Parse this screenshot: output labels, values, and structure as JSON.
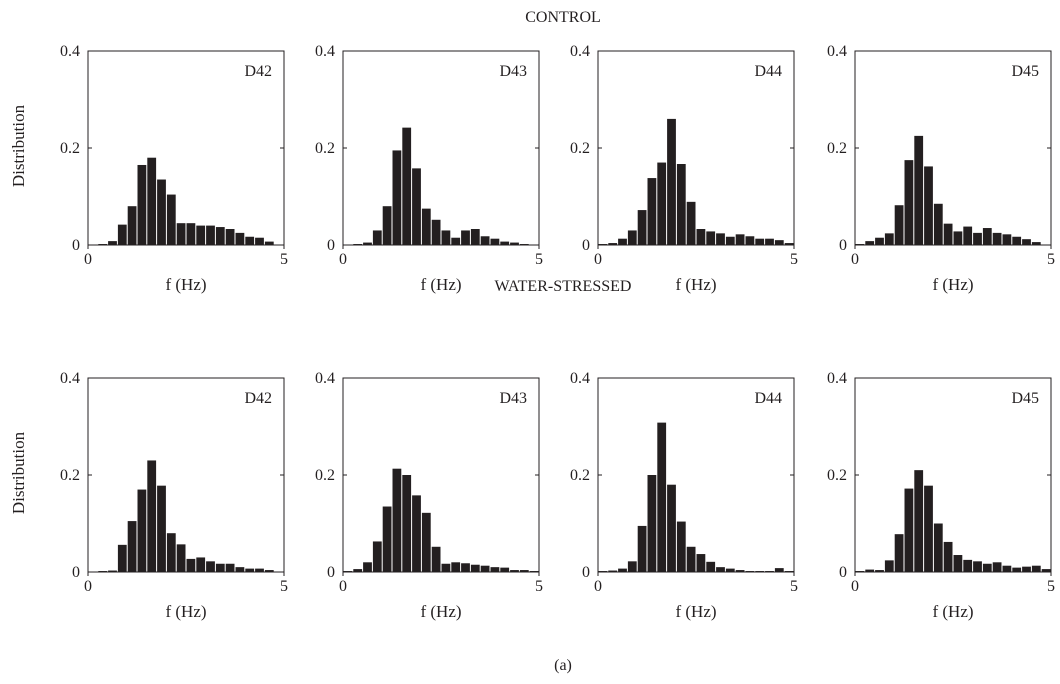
{
  "figure": {
    "caption": "(a)",
    "rows": [
      {
        "label": "CONTROL",
        "ylabel": "Distribution"
      },
      {
        "label": "WATER-STRESSED",
        "ylabel": "Distribution"
      }
    ],
    "xlabel": "f (Hz)",
    "bar_color": "#231f20"
  },
  "chart_data": [
    {
      "type": "bar",
      "row": "CONTROL",
      "label": "D42",
      "xlabel": "f (Hz)",
      "ylabel": "Distribution",
      "xlim": [
        0,
        5
      ],
      "ylim": [
        0,
        0.4
      ],
      "xticks": [
        0,
        5
      ],
      "yticks": [
        0,
        0.2,
        0.4
      ],
      "bin_width": 0.25,
      "bin_starts": [
        0.25,
        0.5,
        0.75,
        1.0,
        1.25,
        1.5,
        1.75,
        2.0,
        2.25,
        2.5,
        2.75,
        3.0,
        3.25,
        3.5,
        3.75,
        4.0,
        4.25,
        4.5
      ],
      "values": [
        0.002,
        0.008,
        0.042,
        0.08,
        0.165,
        0.18,
        0.135,
        0.104,
        0.045,
        0.045,
        0.04,
        0.04,
        0.037,
        0.033,
        0.025,
        0.017,
        0.015,
        0.007
      ]
    },
    {
      "type": "bar",
      "row": "CONTROL",
      "label": "D43",
      "xlabel": "f (Hz)",
      "ylabel": "Distribution",
      "xlim": [
        0,
        5
      ],
      "ylim": [
        0,
        0.4
      ],
      "xticks": [
        0,
        5
      ],
      "yticks": [
        0,
        0.2,
        0.4
      ],
      "bin_width": 0.25,
      "bin_starts": [
        0.25,
        0.5,
        0.75,
        1.0,
        1.25,
        1.5,
        1.75,
        2.0,
        2.25,
        2.5,
        2.75,
        3.0,
        3.25,
        3.5,
        3.75,
        4.0,
        4.25,
        4.5
      ],
      "values": [
        0.002,
        0.005,
        0.03,
        0.08,
        0.195,
        0.242,
        0.158,
        0.075,
        0.052,
        0.03,
        0.015,
        0.03,
        0.033,
        0.018,
        0.013,
        0.007,
        0.005,
        0.002
      ]
    },
    {
      "type": "bar",
      "row": "CONTROL",
      "label": "D44",
      "xlabel": "f (Hz)",
      "ylabel": "Distribution",
      "xlim": [
        0,
        5
      ],
      "ylim": [
        0,
        0.4
      ],
      "xticks": [
        0,
        5
      ],
      "yticks": [
        0,
        0.2,
        0.4
      ],
      "bin_width": 0.25,
      "bin_starts": [
        0.0,
        0.25,
        0.5,
        0.75,
        1.0,
        1.25,
        1.5,
        1.75,
        2.0,
        2.25,
        2.5,
        2.75,
        3.0,
        3.25,
        3.5,
        3.75,
        4.0,
        4.25,
        4.5,
        4.75
      ],
      "values": [
        0.002,
        0.004,
        0.013,
        0.03,
        0.072,
        0.138,
        0.17,
        0.26,
        0.167,
        0.089,
        0.033,
        0.028,
        0.024,
        0.017,
        0.022,
        0.018,
        0.013,
        0.013,
        0.01,
        0.004
      ]
    },
    {
      "type": "bar",
      "row": "CONTROL",
      "label": "D45",
      "xlabel": "f (Hz)",
      "ylabel": "Distribution",
      "xlim": [
        0,
        5
      ],
      "ylim": [
        0,
        0.4
      ],
      "xticks": [
        0,
        5
      ],
      "yticks": [
        0,
        0.2,
        0.4
      ],
      "bin_width": 0.25,
      "bin_starts": [
        0.0,
        0.25,
        0.5,
        0.75,
        1.0,
        1.25,
        1.5,
        1.75,
        2.0,
        2.25,
        2.5,
        2.75,
        3.0,
        3.25,
        3.5,
        3.75,
        4.0,
        4.25,
        4.5
      ],
      "values": [
        0.002,
        0.008,
        0.015,
        0.024,
        0.082,
        0.175,
        0.225,
        0.162,
        0.085,
        0.044,
        0.028,
        0.038,
        0.025,
        0.035,
        0.025,
        0.022,
        0.017,
        0.012,
        0.006
      ]
    },
    {
      "type": "bar",
      "row": "WATER-STRESSED",
      "label": "D42",
      "xlabel": "f (Hz)",
      "ylabel": "Distribution",
      "xlim": [
        0,
        5
      ],
      "ylim": [
        0,
        0.4
      ],
      "xticks": [
        0,
        5
      ],
      "yticks": [
        0,
        0.2,
        0.4
      ],
      "bin_width": 0.25,
      "bin_starts": [
        0.25,
        0.5,
        0.75,
        1.0,
        1.25,
        1.5,
        1.75,
        2.0,
        2.25,
        2.5,
        2.75,
        3.0,
        3.25,
        3.5,
        3.75,
        4.0,
        4.25,
        4.5
      ],
      "values": [
        0.002,
        0.003,
        0.056,
        0.105,
        0.17,
        0.23,
        0.178,
        0.08,
        0.057,
        0.027,
        0.03,
        0.022,
        0.017,
        0.017,
        0.01,
        0.007,
        0.007,
        0.004
      ]
    },
    {
      "type": "bar",
      "row": "WATER-STRESSED",
      "label": "D43",
      "xlabel": "f (Hz)",
      "ylabel": "Distribution",
      "xlim": [
        0,
        5
      ],
      "ylim": [
        0,
        0.4
      ],
      "xticks": [
        0,
        5
      ],
      "yticks": [
        0,
        0.2,
        0.4
      ],
      "bin_width": 0.25,
      "bin_starts": [
        0.0,
        0.25,
        0.5,
        0.75,
        1.0,
        1.25,
        1.5,
        1.75,
        2.0,
        2.25,
        2.5,
        2.75,
        3.0,
        3.25,
        3.5,
        3.75,
        4.0,
        4.25,
        4.5,
        4.75
      ],
      "values": [
        0.002,
        0.006,
        0.02,
        0.063,
        0.135,
        0.213,
        0.2,
        0.158,
        0.122,
        0.052,
        0.017,
        0.02,
        0.018,
        0.015,
        0.013,
        0.01,
        0.009,
        0.004,
        0.004,
        0.002
      ]
    },
    {
      "type": "bar",
      "row": "WATER-STRESSED",
      "label": "D44",
      "xlabel": "f (Hz)",
      "ylabel": "Distribution",
      "xlim": [
        0,
        5
      ],
      "ylim": [
        0,
        0.4
      ],
      "xticks": [
        0,
        5
      ],
      "yticks": [
        0,
        0.2,
        0.4
      ],
      "bin_width": 0.25,
      "bin_starts": [
        0.0,
        0.25,
        0.5,
        0.75,
        1.0,
        1.25,
        1.5,
        1.75,
        2.0,
        2.25,
        2.5,
        2.75,
        3.0,
        3.25,
        3.5,
        3.75,
        4.0,
        4.25,
        4.5,
        4.75
      ],
      "values": [
        0.002,
        0.003,
        0.007,
        0.022,
        0.095,
        0.2,
        0.308,
        0.18,
        0.104,
        0.052,
        0.037,
        0.021,
        0.01,
        0.007,
        0.004,
        0.002,
        0.002,
        0.002,
        0.008,
        0.002
      ]
    },
    {
      "type": "bar",
      "row": "WATER-STRESSED",
      "label": "D45",
      "xlabel": "f (Hz)",
      "ylabel": "Distribution",
      "xlim": [
        0,
        5
      ],
      "ylim": [
        0,
        0.4
      ],
      "xticks": [
        0,
        5
      ],
      "yticks": [
        0,
        0.2,
        0.4
      ],
      "bin_width": 0.25,
      "bin_starts": [
        0.0,
        0.25,
        0.5,
        0.75,
        1.0,
        1.25,
        1.5,
        1.75,
        2.0,
        2.25,
        2.5,
        2.75,
        3.0,
        3.25,
        3.5,
        3.75,
        4.0,
        4.25,
        4.5,
        4.75
      ],
      "values": [
        0.002,
        0.005,
        0.004,
        0.024,
        0.078,
        0.172,
        0.21,
        0.178,
        0.1,
        0.062,
        0.035,
        0.025,
        0.022,
        0.017,
        0.02,
        0.013,
        0.009,
        0.011,
        0.013,
        0.006
      ]
    }
  ]
}
